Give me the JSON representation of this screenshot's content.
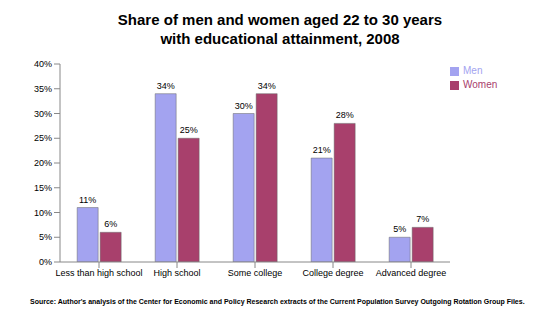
{
  "chart_data": {
    "type": "bar",
    "title": "Share of men and women aged 22 to 30 years with educational attainment, 2008",
    "source": "Source: Author's analysis of the Center for Economic and Policy Research extracts of the Current Population Survey Outgoing Rotation Group Files.",
    "categories": [
      "Less than high school",
      "High school",
      "Some college",
      "College degree",
      "Advanced degree"
    ],
    "series": [
      {
        "name": "Men",
        "color": "#a3a3f0",
        "values": [
          11,
          34,
          30,
          21,
          5
        ],
        "value_labels": [
          "11%",
          "34%",
          "30%",
          "21%",
          "5%"
        ]
      },
      {
        "name": "Women",
        "color": "#a8406c",
        "values": [
          6,
          25,
          34,
          28,
          7
        ],
        "value_labels": [
          "6%",
          "25%",
          "34%",
          "28%",
          "7%"
        ]
      }
    ],
    "ylim": [
      0,
      40
    ],
    "yticks": [
      {
        "value": 0,
        "label": "0%"
      },
      {
        "value": 5,
        "label": "5%"
      },
      {
        "value": 10,
        "label": "10%"
      },
      {
        "value": 15,
        "label": "15%"
      },
      {
        "value": 20,
        "label": "20%"
      },
      {
        "value": 25,
        "label": "25%"
      },
      {
        "value": 30,
        "label": "30%"
      },
      {
        "value": 35,
        "label": "35%"
      },
      {
        "value": 40,
        "label": "40%"
      }
    ],
    "grid": false,
    "legend": "top-right",
    "data_labels": true
  }
}
